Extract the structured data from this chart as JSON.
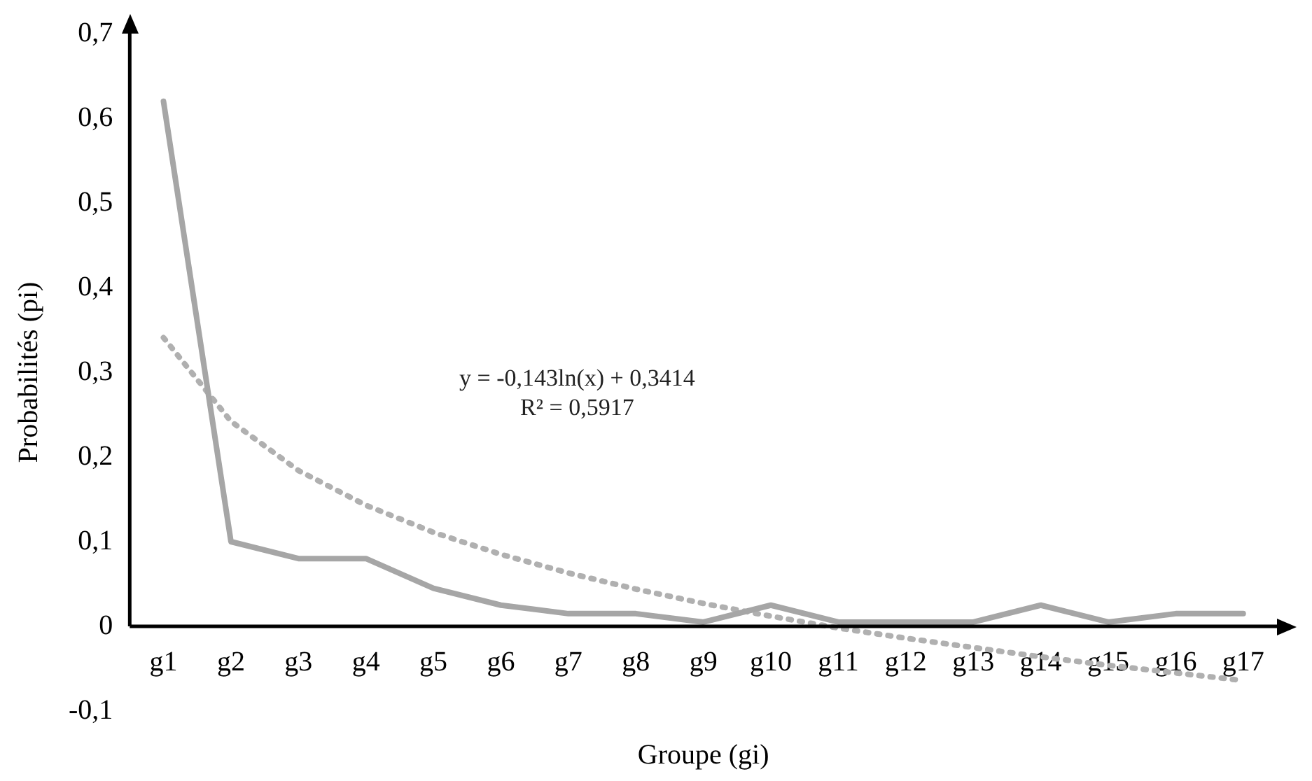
{
  "chart_data": {
    "type": "line",
    "xlabel": "Groupe (gi)",
    "ylabel": "Probabilités (pi)",
    "categories": [
      "g1",
      "g2",
      "g3",
      "g4",
      "g5",
      "g6",
      "g7",
      "g8",
      "g9",
      "g10",
      "g11",
      "g12",
      "g13",
      "g14",
      "g15",
      "g16",
      "g17"
    ],
    "series": [
      {
        "color": "#a6a6a6",
        "line_style": "solid",
        "values": [
          0.62,
          0.1,
          0.08,
          0.08,
          0.045,
          0.025,
          0.015,
          0.015,
          0.005,
          0.025,
          0.005,
          0.005,
          0.005,
          0.025,
          0.005,
          0.015,
          0.015
        ]
      },
      {
        "color": "#b0b0b0",
        "line_style": "dotted",
        "values": [
          0.341,
          0.242,
          0.184,
          0.143,
          0.111,
          0.085,
          0.063,
          0.044,
          0.027,
          0.012,
          -0.002,
          -0.014,
          -0.025,
          -0.036,
          -0.046,
          -0.055,
          -0.064
        ]
      }
    ],
    "ylim": [
      -0.1,
      0.7
    ],
    "yticks": [
      {
        "value": -0.1,
        "label": "-0,1"
      },
      {
        "value": 0,
        "label": "0"
      },
      {
        "value": 0.1,
        "label": "0,1"
      },
      {
        "value": 0.2,
        "label": "0,2"
      },
      {
        "value": 0.3,
        "label": "0,3"
      },
      {
        "value": 0.4,
        "label": "0,4"
      },
      {
        "value": 0.5,
        "label": "0,5"
      },
      {
        "value": 0.6,
        "label": "0,6"
      },
      {
        "value": 0.7,
        "label": "0,7"
      }
    ],
    "annotations": [
      "y = -0,143ln(x) + 0,3414",
      "R² = 0,5917"
    ],
    "grid": false,
    "legend": false,
    "marker": "none"
  }
}
